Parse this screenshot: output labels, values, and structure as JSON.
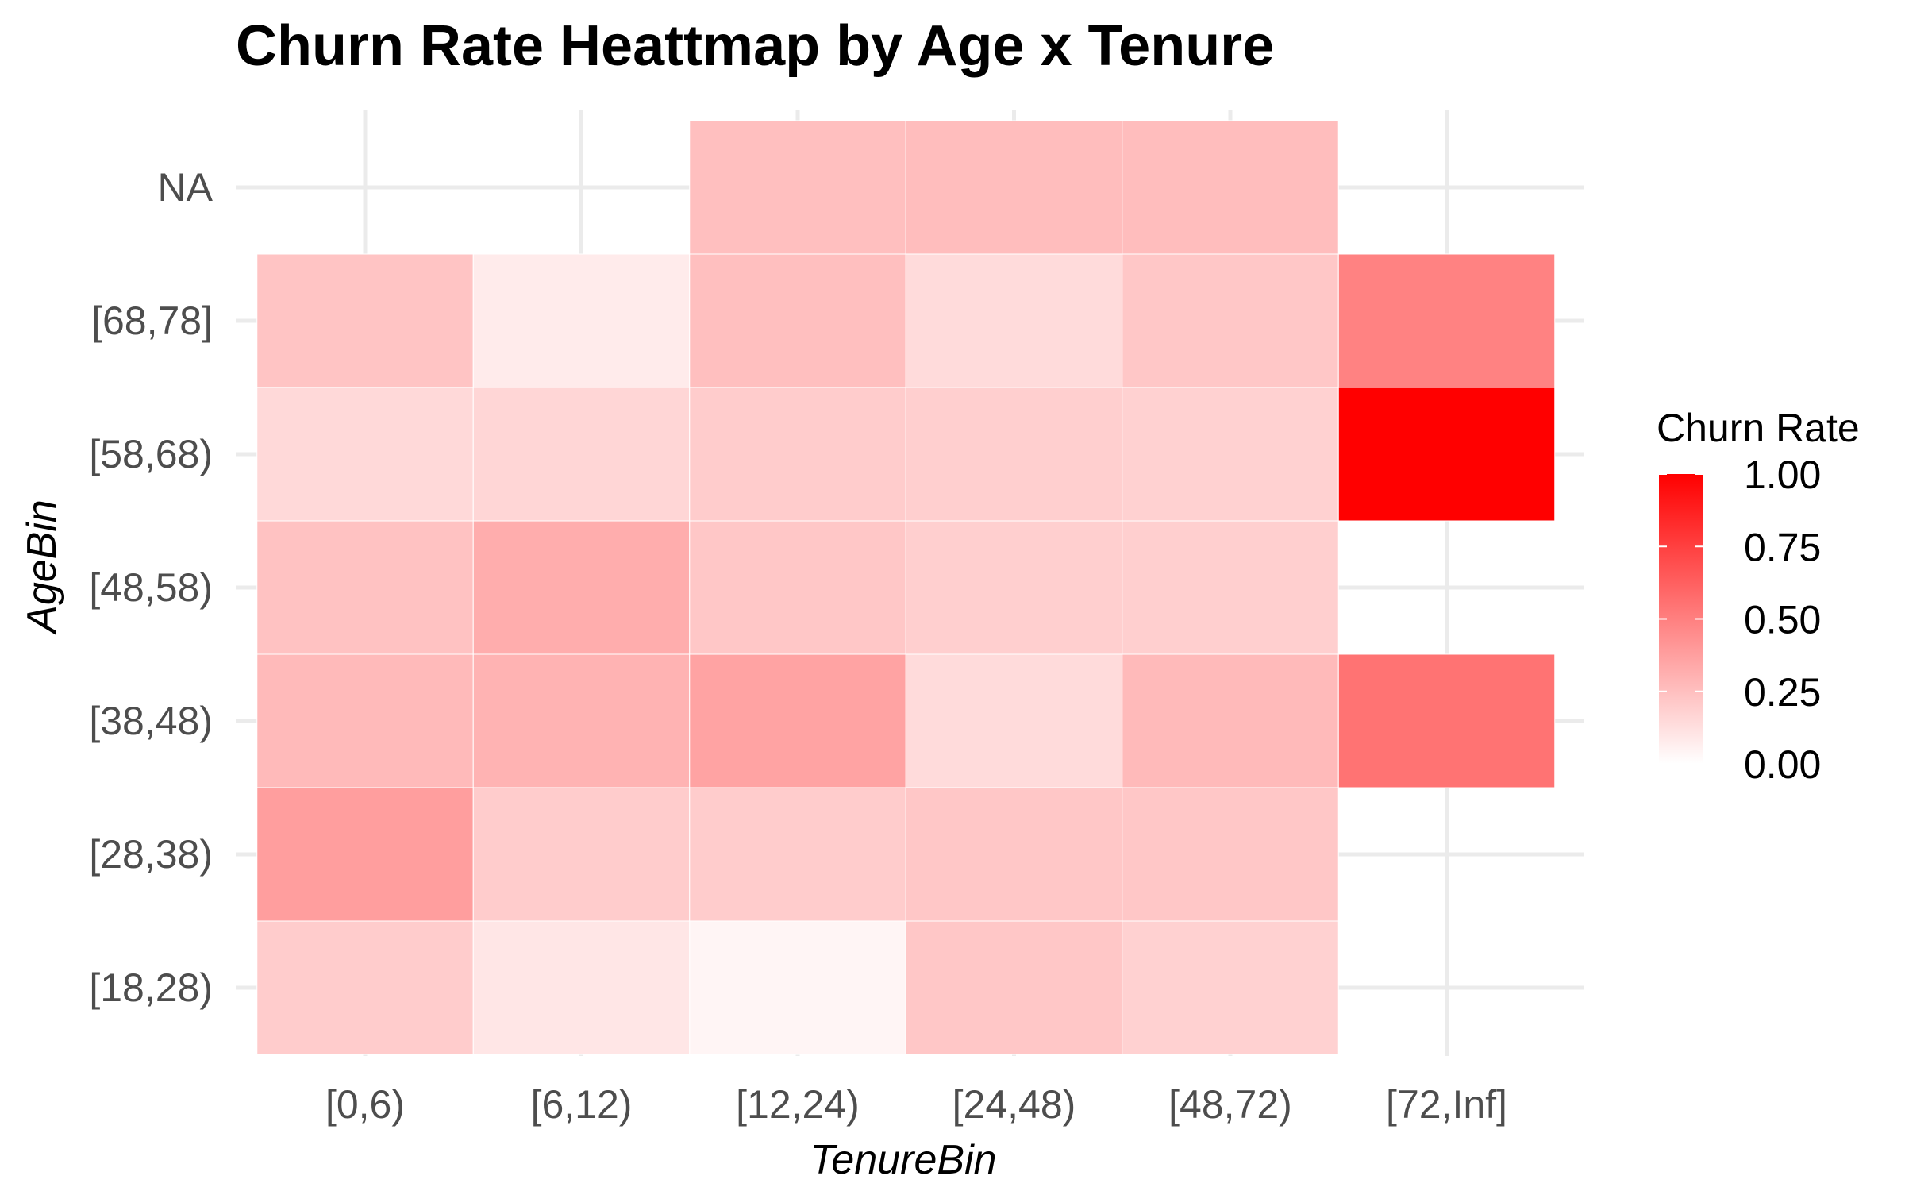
{
  "chart_data": {
    "type": "heatmap",
    "title": "Churn Rate Heattmap by Age x Tenure",
    "xlabel": "TenureBin",
    "ylabel": "AgeBin",
    "x_categories": [
      "[0,6)",
      "[6,12)",
      "[12,24)",
      "[24,48)",
      "[48,72)",
      "[72,Inf]"
    ],
    "y_categories": [
      "[18,28)",
      "[28,38)",
      "[38,48)",
      "[48,58)",
      "[58,68)",
      "[68,78]",
      "NA"
    ],
    "values": [
      [
        0.2,
        0.1,
        0.04,
        0.22,
        0.18,
        null
      ],
      [
        0.38,
        0.2,
        0.2,
        0.22,
        0.22,
        null
      ],
      [
        0.27,
        0.3,
        0.36,
        0.14,
        0.27,
        0.55
      ],
      [
        0.24,
        0.32,
        0.22,
        0.19,
        0.19,
        null
      ],
      [
        0.15,
        0.16,
        0.2,
        0.19,
        0.18,
        1.0
      ],
      [
        0.23,
        0.08,
        0.25,
        0.14,
        0.22,
        0.49
      ],
      [
        null,
        null,
        0.25,
        0.26,
        0.26,
        null
      ]
    ],
    "color_scale": {
      "low": "#ffffff",
      "high": "#ff0000",
      "limits": [
        0,
        1
      ]
    },
    "legend": {
      "title": "Churn Rate",
      "breaks": [
        "1.00",
        "0.75",
        "0.50",
        "0.25",
        "0.00"
      ],
      "position": "right"
    },
    "grid": true
  }
}
